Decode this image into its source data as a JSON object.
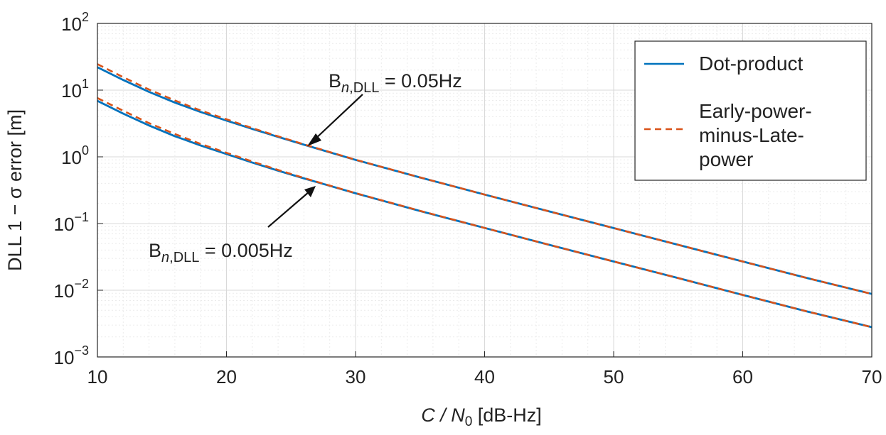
{
  "chart_data": {
    "type": "line",
    "xlabel_var": "C / N",
    "xlabel_sub": "0",
    "xlabel_unit": " [dB-Hz]",
    "ylabel": "DLL 1 − σ error [m]",
    "xlim": [
      10,
      70
    ],
    "ylim": [
      0.001,
      100
    ],
    "yscale": "log",
    "grid": true,
    "minor_grid": true,
    "legend_position": "top-right",
    "x_ticks": [
      "10",
      "20",
      "30",
      "40",
      "50",
      "60",
      "70"
    ],
    "y_ticks": [
      {
        "base": "10",
        "exp": "−3"
      },
      {
        "base": "10",
        "exp": "−2"
      },
      {
        "base": "10",
        "exp": "−1"
      },
      {
        "base": "10",
        "exp": "0"
      },
      {
        "base": "10",
        "exp": "1"
      },
      {
        "base": "10",
        "exp": "2"
      }
    ],
    "legend": [
      {
        "lines": [
          "Dot-product"
        ],
        "color": "#0072BD",
        "style": "solid"
      },
      {
        "lines": [
          "Early-power-",
          "minus-Late-",
          "power"
        ],
        "color": "#D95319",
        "style": "dashed"
      }
    ],
    "annotations": [
      {
        "text_main": "B",
        "text_sub_italic": "n",
        "text_sub": ",DLL",
        "text_rest": " = 0.05Hz"
      },
      {
        "text_main": "B",
        "text_sub_italic": "n",
        "text_sub": ",DLL",
        "text_rest": " = 0.005Hz"
      }
    ],
    "x": [
      10,
      12,
      14,
      16,
      18,
      20,
      22,
      24,
      26,
      28,
      30,
      35,
      40,
      45,
      50,
      55,
      60,
      65,
      70
    ],
    "series": [
      {
        "group": "0.05Hz",
        "method": "dot",
        "color": "#0072BD",
        "dash": false,
        "values": [
          22,
          14.2,
          9.4,
          6.5,
          4.7,
          3.5,
          2.62,
          1.99,
          1.52,
          1.17,
          0.9,
          0.49,
          0.272,
          0.152,
          0.0855,
          0.048,
          0.027,
          0.0152,
          0.0088
        ]
      },
      {
        "group": "0.05Hz",
        "method": "emlp",
        "color": "#D95319",
        "dash": true,
        "values": [
          24.5,
          15.6,
          10.2,
          7.0,
          4.95,
          3.65,
          2.7,
          2.03,
          1.54,
          1.18,
          0.905,
          0.491,
          0.272,
          0.152,
          0.0855,
          0.048,
          0.027,
          0.0152,
          0.0088
        ]
      },
      {
        "group": "0.005Hz",
        "method": "dot",
        "color": "#0072BD",
        "dash": false,
        "values": [
          6.9,
          4.45,
          2.95,
          2.04,
          1.48,
          1.1,
          0.82,
          0.62,
          0.475,
          0.368,
          0.284,
          0.154,
          0.086,
          0.048,
          0.027,
          0.0152,
          0.0085,
          0.0048,
          0.0028
        ]
      },
      {
        "group": "0.005Hz",
        "method": "emlp",
        "color": "#D95319",
        "dash": true,
        "values": [
          7.6,
          4.9,
          3.2,
          2.2,
          1.56,
          1.15,
          0.85,
          0.635,
          0.482,
          0.371,
          0.286,
          0.155,
          0.086,
          0.048,
          0.027,
          0.0152,
          0.0085,
          0.0048,
          0.0028
        ]
      }
    ]
  }
}
